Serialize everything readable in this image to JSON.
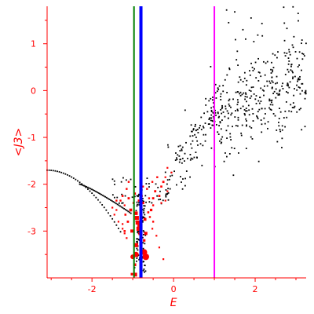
{
  "chart_data": {
    "type": "scatter",
    "xlabel": "E",
    "ylabel": "<J3>",
    "xlim": [
      -3.1,
      3.25
    ],
    "ylim": [
      -4.0,
      1.8
    ],
    "x_ticks": [
      -2,
      0,
      2
    ],
    "y_ticks": [
      1,
      0,
      -1,
      -2,
      -3
    ],
    "x_tick_labels": [
      "-2",
      "0",
      "2"
    ],
    "y_tick_labels": [
      "1",
      "0",
      "-1",
      "-2",
      "-3"
    ],
    "grid": false,
    "vlines": [
      {
        "x": -0.97,
        "color": "#008000"
      },
      {
        "x": -0.8,
        "color": "#0000ff"
      },
      {
        "x": 1.0,
        "color": "#ff00ff"
      }
    ],
    "colors": {
      "axes": "#ff0000",
      "black_points": "#000000",
      "red_points": "#ff0000"
    },
    "red_points": [
      [
        -0.9,
        -2.72,
        2.6
      ],
      [
        -0.88,
        -2.82,
        2.6
      ],
      [
        -0.86,
        -2.95,
        2.6
      ],
      [
        -0.84,
        -2.88,
        2.4
      ],
      [
        -0.92,
        -2.62,
        2.2
      ],
      [
        -0.82,
        -3.05,
        2.2
      ],
      [
        -1.02,
        -3.0,
        2.0
      ],
      [
        -1.05,
        -2.55,
        1.8
      ],
      [
        -0.7,
        -2.75,
        1.8
      ],
      [
        -0.68,
        -3.05,
        2.0
      ],
      [
        -0.75,
        -2.4,
        1.6
      ],
      [
        -0.72,
        -3.2,
        1.6
      ],
      [
        -0.92,
        -3.3,
        2.6
      ],
      [
        -0.92,
        -3.5,
        3.4
      ],
      [
        -0.68,
        -3.55,
        4.2
      ],
      [
        -0.72,
        -3.45,
        3.8
      ],
      [
        -1.0,
        -3.55,
        3.0
      ],
      [
        -0.94,
        -3.93,
        2.4
      ],
      [
        -1.02,
        -3.92,
        1.6
      ],
      [
        -0.95,
        -3.72,
        1.8
      ],
      [
        -0.55,
        -2.55,
        1.6
      ],
      [
        -0.45,
        -2.15,
        1.4
      ],
      [
        -0.35,
        -2.25,
        1.4
      ],
      [
        -0.25,
        -1.95,
        1.4
      ],
      [
        -0.3,
        -2.05,
        1.3
      ],
      [
        -0.5,
        -2.3,
        1.4
      ],
      [
        -0.85,
        -2.35,
        1.4
      ],
      [
        -0.95,
        -2.2,
        1.4
      ],
      [
        -1.1,
        -2.3,
        1.4
      ],
      [
        -1.25,
        -2.25,
        1.3
      ],
      [
        -1.18,
        -2.65,
        1.3
      ],
      [
        -1.12,
        -2.8,
        1.4
      ],
      [
        -1.2,
        -3.0,
        1.3
      ],
      [
        -1.3,
        -2.35,
        1.2
      ],
      [
        -1.4,
        -2.35,
        1.2
      ],
      [
        -1.5,
        -2.5,
        1.1
      ],
      [
        -1.45,
        -2.65,
        1.1
      ],
      [
        -1.35,
        -2.8,
        1.1
      ],
      [
        -1.25,
        -2.85,
        1.1
      ],
      [
        -1.25,
        -2.95,
        1.1
      ],
      [
        -1.2,
        -3.05,
        1.1
      ],
      [
        -1.15,
        -3.15,
        1.1
      ],
      [
        -0.58,
        -2.7,
        1.2
      ],
      [
        -0.5,
        -2.8,
        1.2
      ],
      [
        -0.42,
        -3.1,
        1.1
      ],
      [
        -0.35,
        -3.35,
        1.1
      ],
      [
        -0.25,
        -3.6,
        1.1
      ],
      [
        -0.6,
        -2.3,
        1.2
      ],
      [
        -0.52,
        -1.95,
        1.2
      ],
      [
        -0.4,
        -1.85,
        1.2
      ],
      [
        -0.15,
        -1.65,
        1.1
      ],
      [
        -0.05,
        -1.75,
        1.1
      ],
      [
        -0.2,
        -1.85,
        1.1
      ],
      [
        -0.75,
        -2.05,
        1.2
      ],
      [
        -0.65,
        -2.1,
        1.2
      ],
      [
        -1.1,
        -1.95,
        1.2
      ],
      [
        -1.15,
        -2.1,
        1.2
      ],
      [
        -0.3,
        -2.4,
        1.1
      ],
      [
        -0.2,
        -2.35,
        1.1
      ],
      [
        -0.15,
        -2.15,
        1.1
      ],
      [
        -0.5,
        -2.45,
        1.2
      ],
      [
        -0.78,
        -2.25,
        1.3
      ],
      [
        -0.62,
        -2.6,
        1.3
      ],
      [
        -0.98,
        -2.4,
        1.3
      ],
      [
        -1.4,
        -2.55,
        1.1
      ],
      [
        -1.2,
        -2.45,
        1.1
      ],
      [
        -0.52,
        -2.95,
        1.1
      ]
    ],
    "series_note": "black dots = generated scatter cloud"
  }
}
